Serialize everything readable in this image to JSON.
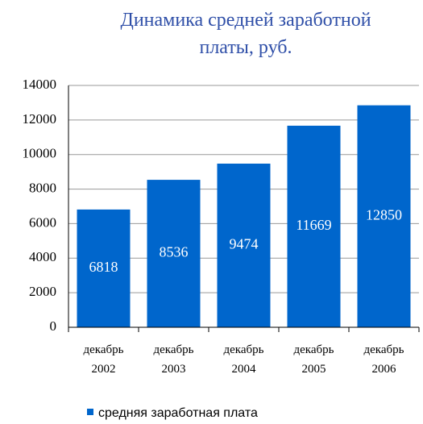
{
  "chart_data": {
    "type": "bar",
    "title": "Динамика средней заработной платы, руб.",
    "categories": [
      "декабрь 2002",
      "декабрь 2003",
      "декабрь 2004",
      "декабрь 2005",
      "декабрь 2006"
    ],
    "series": [
      {
        "name": "средняя заработная плата",
        "color": "#0066cc",
        "values": [
          6818,
          8536,
          9474,
          11669,
          12850
        ]
      }
    ],
    "ylim": [
      0,
      14000
    ],
    "yticks": [
      0,
      2000,
      4000,
      6000,
      8000,
      10000,
      12000,
      14000
    ],
    "grid": true
  }
}
